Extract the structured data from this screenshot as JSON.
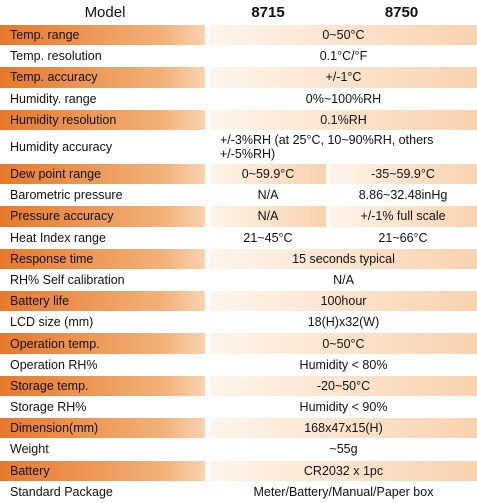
{
  "header": {
    "model": "Model",
    "col1": "8715",
    "col2": "8750"
  },
  "rows": [
    {
      "label": "Temp. range",
      "values": [
        "0~50°C"
      ]
    },
    {
      "label": "Temp. resolution",
      "values": [
        "0.1°C/°F"
      ]
    },
    {
      "label": "Temp. accuracy",
      "values": [
        "+/-1°C"
      ]
    },
    {
      "label": "Humidity. range",
      "values": [
        "0%~100%RH"
      ]
    },
    {
      "label": "Humidity resolution",
      "values": [
        "0.1%RH"
      ]
    },
    {
      "label": "Humidity accuracy",
      "values": [
        "+/-3%RH (at 25°C, 10~90%RH, others +/-5%RH)"
      ]
    },
    {
      "label": "Dew point range",
      "values": [
        "0~59.9°C",
        "-35~59.9°C"
      ]
    },
    {
      "label": "Barometric pressure",
      "values": [
        "N/A",
        "8.86~32.48inHg"
      ]
    },
    {
      "label": "Pressure accuracy",
      "values": [
        "N/A",
        "+/-1% full scale"
      ]
    },
    {
      "label": "Heat Index range",
      "values": [
        "21~45°C",
        "21~66°C"
      ]
    },
    {
      "label": "Response time",
      "values": [
        "15 seconds typical"
      ]
    },
    {
      "label": "RH% Self calibration",
      "values": [
        "N/A"
      ]
    },
    {
      "label": "Battery life",
      "values": [
        "100hour"
      ]
    },
    {
      "label": "LCD size (mm)",
      "values": [
        "18(H)x32(W)"
      ]
    },
    {
      "label": "Operation temp.",
      "values": [
        "0~50°C"
      ]
    },
    {
      "label": "Operation RH%",
      "values": [
        "Humidity < 80%"
      ]
    },
    {
      "label": "Storage temp.",
      "values": [
        "-20~50°C"
      ]
    },
    {
      "label": "Storage RH%",
      "values": [
        "Humidity < 90%"
      ]
    },
    {
      "label": "Dimension(mm)",
      "values": [
        "168x47x15(H)"
      ]
    },
    {
      "label": "Weight",
      "values": [
        "~55g"
      ]
    },
    {
      "label": "Battery",
      "values": [
        "CR2032 x 1pc"
      ]
    },
    {
      "label": "Standard Package",
      "values": [
        "Meter/Battery/Manual/Paper box"
      ]
    }
  ]
}
